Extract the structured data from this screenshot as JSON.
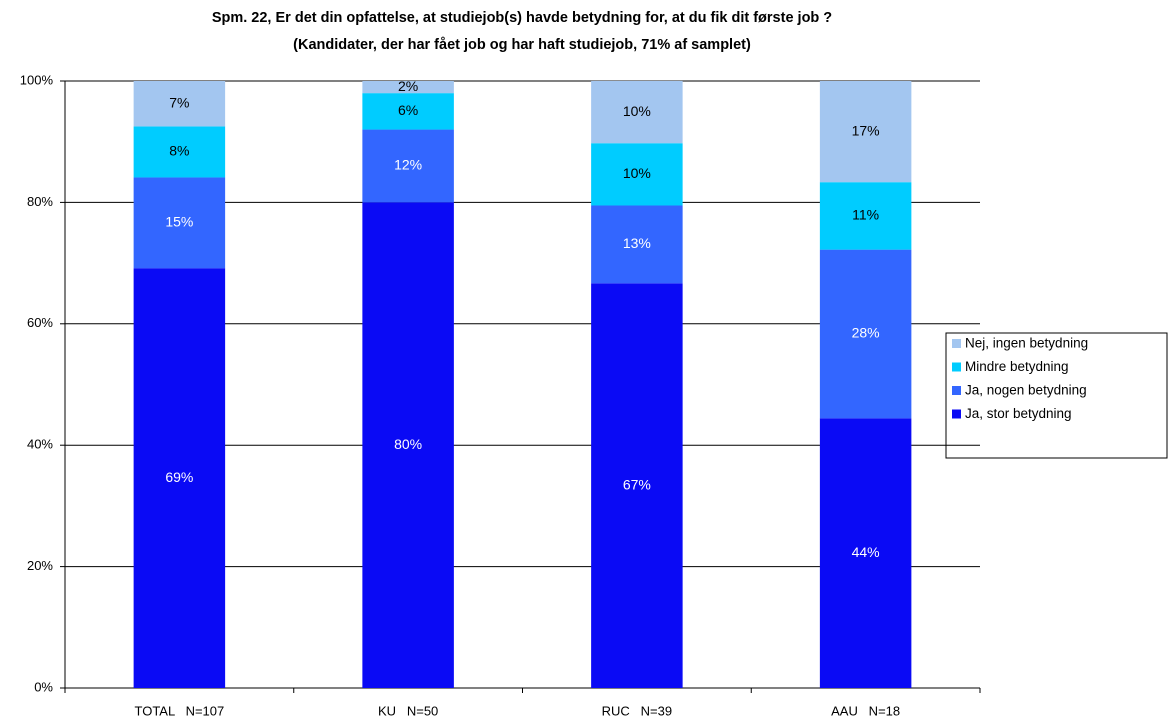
{
  "chart_data": {
    "type": "stacked_bar",
    "title": "Spm. 22, Er det din opfattelse, at studiejob(s) havde betydning for, at du fik dit første job ?",
    "subtitle": "(Kandidater, der har fået job og har haft studiejob, 71% af samplet)",
    "categories": [
      "TOTAL   N=107",
      "KU   N=50",
      "RUC   N=39",
      "AAU   N=18"
    ],
    "series": [
      {
        "name": "Ja, stor betydning",
        "color": "#0a0af5",
        "label_color": "#ffffff",
        "values": [
          69.16,
          80,
          66.67,
          44.44
        ],
        "value_labels": [
          "69%",
          "80%",
          "67%",
          "44%"
        ]
      },
      {
        "name": "Ja, nogen betydning",
        "color": "#3366ff",
        "label_color": "#ffffff",
        "values": [
          14.95,
          12,
          12.82,
          27.78
        ],
        "value_labels": [
          "15%",
          "12%",
          "13%",
          "28%"
        ]
      },
      {
        "name": "Mindre betydning",
        "color": "#00ccff",
        "label_color": "#000000",
        "values": [
          8.41,
          6,
          10.26,
          11.11
        ],
        "value_labels": [
          "8%",
          "6%",
          "10%",
          "11%"
        ]
      },
      {
        "name": "Nej, ingen betydning",
        "color": "#a3c6f0",
        "label_color": "#000000",
        "values": [
          7.48,
          2,
          10.26,
          16.67
        ],
        "value_labels": [
          "7%",
          "2%",
          "10%",
          "17%"
        ]
      }
    ],
    "ylim": [
      0,
      100
    ],
    "yticks": [
      {
        "value": 0,
        "label": "0%"
      },
      {
        "value": 20,
        "label": "20%"
      },
      {
        "value": 40,
        "label": "40%"
      },
      {
        "value": 60,
        "label": "60%"
      },
      {
        "value": 80,
        "label": "80%"
      },
      {
        "value": 100,
        "label": "100%"
      }
    ],
    "grid": true,
    "legend": "right"
  }
}
